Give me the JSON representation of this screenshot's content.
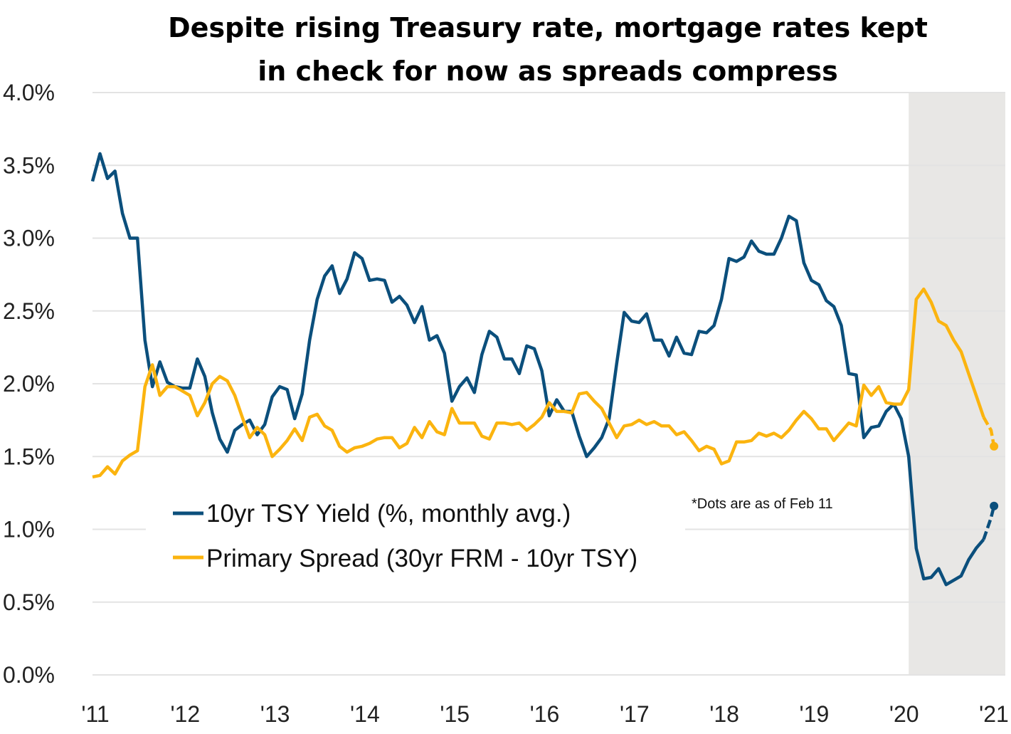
{
  "chart_data": {
    "type": "line",
    "title": "Despite rising Treasury rate, mortgage rates kept in check for now as spreads compress",
    "title_lines": [
      "Despite rising Treasury rate, mortgage rates kept",
      "in check for now as spreads compress"
    ],
    "xlabel": "",
    "ylabel": "",
    "ylim": [
      0,
      4.0
    ],
    "y_ticks": [
      "0.0%",
      "0.5%",
      "1.0%",
      "1.5%",
      "2.0%",
      "2.5%",
      "3.0%",
      "3.5%",
      "4.0%"
    ],
    "y_tick_values": [
      0,
      0.5,
      1.0,
      1.5,
      2.0,
      2.5,
      3.0,
      3.5,
      4.0
    ],
    "x_ticks": [
      "'11",
      "'12",
      "'13",
      "'14",
      "'15",
      "'16",
      "'17",
      "'18",
      "'19",
      "'20",
      "'21"
    ],
    "x_range": [
      "2011-01",
      "2021-02"
    ],
    "grid": "horizontal",
    "shaded_region": {
      "from": "2020-02",
      "to": "2021-02",
      "color": "#e8e7e5"
    },
    "annotation": "*Dots are as of Feb 11",
    "legend_position": "bottom-left",
    "monthly_start": "2011-01",
    "series": [
      {
        "name": "10yr TSY Yield (%, monthly avg.)",
        "color": "#0b4f7c",
        "values": [
          3.39,
          3.58,
          3.41,
          3.46,
          3.17,
          3.0,
          3.0,
          2.3,
          1.98,
          2.15,
          2.01,
          1.98,
          1.97,
          1.97,
          2.17,
          2.05,
          1.8,
          1.62,
          1.53,
          1.68,
          1.72,
          1.75,
          1.65,
          1.72,
          1.91,
          1.98,
          1.96,
          1.76,
          1.93,
          2.3,
          2.58,
          2.74,
          2.81,
          2.62,
          2.72,
          2.9,
          2.86,
          2.71,
          2.72,
          2.71,
          2.56,
          2.6,
          2.54,
          2.42,
          2.53,
          2.3,
          2.33,
          2.21,
          1.88,
          1.98,
          2.04,
          1.94,
          2.2,
          2.36,
          2.32,
          2.17,
          2.17,
          2.07,
          2.26,
          2.24,
          2.09,
          1.78,
          1.89,
          1.81,
          1.81,
          1.64,
          1.5,
          1.56,
          1.63,
          1.76,
          2.14,
          2.49,
          2.43,
          2.42,
          2.48,
          2.3,
          2.3,
          2.19,
          2.32,
          2.21,
          2.2,
          2.36,
          2.35,
          2.4,
          2.58,
          2.86,
          2.84,
          2.87,
          2.98,
          2.91,
          2.89,
          2.89,
          3.0,
          3.15,
          3.12,
          2.83,
          2.71,
          2.68,
          2.57,
          2.53,
          2.4,
          2.07,
          2.06,
          1.63,
          1.7,
          1.71,
          1.81,
          1.86,
          1.76,
          1.5,
          0.87,
          0.66,
          0.67,
          0.73,
          0.62,
          0.65,
          0.68,
          0.79,
          0.87,
          0.93,
          1.08
        ],
        "dot": {
          "date": "Feb 11",
          "value": 1.16
        }
      },
      {
        "name": "Primary Spread (30yr FRM - 10yr TSY)",
        "color": "#fbb40f",
        "values": [
          1.36,
          1.37,
          1.43,
          1.38,
          1.47,
          1.51,
          1.54,
          1.98,
          2.13,
          1.92,
          1.98,
          1.98,
          1.95,
          1.92,
          1.78,
          1.87,
          2.0,
          2.05,
          2.02,
          1.92,
          1.77,
          1.63,
          1.7,
          1.65,
          1.5,
          1.55,
          1.61,
          1.69,
          1.61,
          1.77,
          1.79,
          1.71,
          1.68,
          1.57,
          1.53,
          1.56,
          1.57,
          1.59,
          1.62,
          1.63,
          1.63,
          1.56,
          1.59,
          1.7,
          1.63,
          1.74,
          1.67,
          1.65,
          1.83,
          1.73,
          1.73,
          1.73,
          1.64,
          1.62,
          1.73,
          1.73,
          1.72,
          1.73,
          1.68,
          1.72,
          1.77,
          1.87,
          1.81,
          1.81,
          1.8,
          1.93,
          1.94,
          1.88,
          1.83,
          1.73,
          1.63,
          1.71,
          1.72,
          1.75,
          1.72,
          1.74,
          1.71,
          1.71,
          1.65,
          1.67,
          1.61,
          1.54,
          1.57,
          1.55,
          1.45,
          1.47,
          1.6,
          1.6,
          1.61,
          1.66,
          1.64,
          1.66,
          1.63,
          1.68,
          1.75,
          1.81,
          1.76,
          1.69,
          1.69,
          1.61,
          1.67,
          1.73,
          1.71,
          1.99,
          1.92,
          1.98,
          1.87,
          1.86,
          1.86,
          1.96,
          2.58,
          2.65,
          2.56,
          2.43,
          2.4,
          2.3,
          2.22,
          2.07,
          1.92,
          1.77,
          1.68
        ],
        "dot": {
          "date": "Feb 11",
          "value": 1.57
        }
      }
    ]
  }
}
